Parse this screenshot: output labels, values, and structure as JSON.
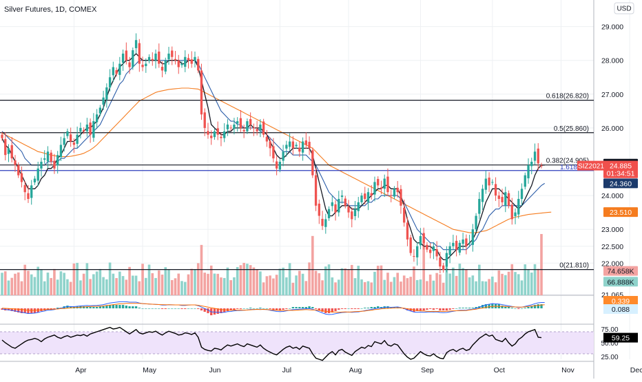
{
  "header": {
    "title": "Silver Futures, 1D, COMEX"
  },
  "currency_button": {
    "label": "USD"
  },
  "colors": {
    "up": "#26a69a",
    "down": "#ef5350",
    "vol_up": "#8fd3cb",
    "vol_down": "#f3a3a1",
    "ma_fast": "#131722",
    "ma_mid": "#2a5ca8",
    "ma_slow": "#f57c1f",
    "fib_line": "#131722",
    "blue_line": "#2c3dbd",
    "macd_line": "#2962ff",
    "signal_line": "#ff6d00",
    "rsi_line": "#000000",
    "rsi_band": "#efe3fb",
    "grid": "#eef0f3"
  },
  "chart_data": {
    "type": "candlestick",
    "title": "Silver Futures, 1D, COMEX",
    "price_axis": {
      "ticks": [
        "29.000",
        "28.000",
        "27.000",
        "26.000",
        "24.000",
        "23.000",
        "22.500",
        "22.000",
        "21.065"
      ],
      "range": [
        20.9,
        29.6
      ]
    },
    "time_axis": {
      "labels": [
        "Apr",
        "May",
        "Jun",
        "Jul",
        "Aug",
        "Sep",
        "Oct",
        "Nov",
        "Dec"
      ],
      "month_starts": [
        22,
        43,
        63,
        85,
        106,
        128,
        150,
        171,
        192
      ]
    },
    "fib_levels": [
      {
        "label": "0.618(26.820)",
        "price": 26.82
      },
      {
        "label": "0.5(25.860)",
        "price": 25.86
      },
      {
        "label": "0.382(24.905)",
        "price": 24.905
      },
      {
        "label": "0(21.810)",
        "price": 21.81
      }
    ],
    "blue_level": {
      "label": "1.618",
      "price": 24.74
    },
    "price_labels": [
      {
        "text": "24.945",
        "price": 24.945,
        "style": "dark"
      },
      {
        "text": "24.885",
        "price": 24.885,
        "style": "red"
      },
      {
        "text": "SIZ2021",
        "price": 24.885,
        "style": "red-tag"
      },
      {
        "text": "01:34:51",
        "price": 24.66,
        "style": "red"
      },
      {
        "text": "24.360",
        "price": 24.36,
        "style": "navy"
      },
      {
        "text": "23.510",
        "price": 23.51,
        "style": "orange"
      },
      {
        "text": "74.658K",
        "price": 21.77,
        "style": "salmon"
      },
      {
        "text": "66.888K",
        "price": 21.45,
        "style": "teal"
      }
    ],
    "closes": [
      25.7,
      25.2,
      25.4,
      25.1,
      24.9,
      24.6,
      24.4,
      24.1,
      23.9,
      24.3,
      24.5,
      24.8,
      25.0,
      25.1,
      25.3,
      25.0,
      24.8,
      25.2,
      25.5,
      25.7,
      25.9,
      25.6,
      25.5,
      25.8,
      26.0,
      25.9,
      26.1,
      25.8,
      26.2,
      26.4,
      26.6,
      26.9,
      27.2,
      27.5,
      27.8,
      27.6,
      27.9,
      28.2,
      28.0,
      27.8,
      28.3,
      28.6,
      27.9,
      27.8,
      27.9,
      28.1,
      28.0,
      28.2,
      27.9,
      27.7,
      28.0,
      28.2,
      28.1,
      28.0,
      27.8,
      27.9,
      28.1,
      28.0,
      27.9,
      28.1,
      27.7,
      26.4,
      26.0,
      25.8,
      25.7,
      25.9,
      25.8,
      25.7,
      25.9,
      26.1,
      26.0,
      26.1,
      26.2,
      26.0,
      25.9,
      26.2,
      26.1,
      26.0,
      25.9,
      26.1,
      25.8,
      25.6,
      25.4,
      25.1,
      24.8,
      25.0,
      25.3,
      25.5,
      25.6,
      25.4,
      25.5,
      25.3,
      25.6,
      25.5,
      25.4,
      24.6,
      23.7,
      23.4,
      23.1,
      23.3,
      23.6,
      23.8,
      23.5,
      23.9,
      24.0,
      23.7,
      23.5,
      23.3,
      23.6,
      23.8,
      24.0,
      23.9,
      24.1,
      24.0,
      24.4,
      24.3,
      24.2,
      24.5,
      24.1,
      24.0,
      24.2,
      24.1,
      23.7,
      23.2,
      22.7,
      22.3,
      22.2,
      22.5,
      22.8,
      22.6,
      22.4,
      22.3,
      22.5,
      22.2,
      21.9,
      21.8,
      22.3,
      22.5,
      22.6,
      22.4,
      22.6,
      22.7,
      22.5,
      22.6,
      23.0,
      23.4,
      23.9,
      24.2,
      24.5,
      24.3,
      24.4,
      24.0,
      23.9,
      23.8,
      24.1,
      23.7,
      23.3,
      23.5,
      23.9,
      24.2,
      24.6,
      24.9,
      25.0,
      25.3,
      24.95,
      24.885
    ],
    "ma_fast": [
      25.7,
      25.5,
      25.4,
      25.2,
      25.0,
      24.8,
      24.6,
      24.4,
      24.2,
      24.2,
      24.2,
      24.3,
      24.5,
      24.6,
      24.8,
      24.8,
      24.9,
      25.1,
      25.2,
      25.4,
      25.6,
      25.6,
      25.6,
      25.7,
      25.8,
      25.9,
      26.0,
      26.0,
      26.1,
      26.2,
      26.4,
      26.6,
      26.9,
      27.2,
      27.4,
      27.6,
      27.8,
      27.9,
      28.0,
      28.0,
      28.1,
      28.2,
      28.1,
      28.0,
      28.0,
      28.0,
      28.0,
      28.0,
      28.0,
      27.9,
      27.9,
      28.0,
      28.0,
      28.0,
      28.0,
      27.9,
      27.9,
      28.0,
      28.0,
      28.0,
      27.8,
      27.4,
      27.0,
      26.6,
      26.1,
      26.0,
      25.9,
      25.8,
      25.8,
      25.9,
      25.9,
      26.0,
      26.0,
      26.0,
      26.0,
      26.0,
      26.1,
      26.0,
      26.0,
      26.0,
      25.9,
      25.8,
      25.6,
      25.4,
      25.2,
      25.1,
      25.1,
      25.2,
      25.3,
      25.4,
      25.4,
      25.4,
      25.4,
      25.4,
      25.4,
      25.2,
      24.8,
      24.4,
      24.0,
      23.6,
      23.4,
      23.4,
      23.5,
      23.6,
      23.7,
      23.7,
      23.7,
      23.6,
      23.6,
      23.6,
      23.7,
      23.8,
      23.9,
      24.0,
      24.1,
      24.2,
      24.2,
      24.3,
      24.3,
      24.2,
      24.2,
      24.2,
      24.0,
      23.7,
      23.3,
      23.0,
      22.7,
      22.6,
      22.6,
      22.5,
      22.5,
      22.5,
      22.4,
      22.4,
      22.2,
      22.1,
      22.1,
      22.2,
      22.3,
      22.4,
      22.5,
      22.5,
      22.5,
      22.6,
      22.7,
      22.9,
      23.2,
      23.5,
      23.8,
      24.0,
      24.2,
      24.2,
      24.2,
      24.1,
      24.0,
      23.9,
      23.8,
      23.7,
      23.6,
      23.7,
      23.9,
      24.1,
      24.3,
      24.6,
      24.8,
      24.9,
      24.9
    ],
    "ma_mid": [
      25.9,
      25.8,
      25.7,
      25.6,
      25.5,
      25.4,
      25.3,
      25.1,
      25.0,
      24.9,
      24.9,
      24.9,
      24.9,
      24.9,
      25.0,
      25.0,
      25.0,
      25.0,
      25.1,
      25.1,
      25.2,
      25.3,
      25.4,
      25.4,
      25.5,
      25.6,
      25.7,
      25.8,
      25.9,
      26.0,
      26.1,
      26.3,
      26.5,
      26.7,
      26.9,
      27.1,
      27.3,
      27.4,
      27.6,
      27.7,
      27.8,
      27.9,
      28.0,
      28.0,
      28.0,
      28.0,
      28.0,
      28.0,
      28.0,
      28.0,
      28.0,
      28.0,
      28.0,
      28.0,
      28.0,
      28.0,
      28.0,
      28.0,
      28.0,
      28.0,
      27.9,
      27.7,
      27.5,
      27.3,
      27.1,
      26.9,
      26.7,
      26.5,
      26.4,
      26.3,
      26.2,
      26.2,
      26.1,
      26.1,
      26.0,
      26.0,
      26.0,
      26.0,
      26.0,
      25.9,
      25.9,
      25.8,
      25.7,
      25.6,
      25.5,
      25.4,
      25.3,
      25.3,
      25.3,
      25.2,
      25.2,
      25.2,
      25.2,
      25.2,
      25.1,
      25.0,
      24.9,
      24.7,
      24.5,
      24.3,
      24.1,
      24.0,
      23.9,
      23.8,
      23.8,
      23.8,
      23.7,
      23.7,
      23.7,
      23.7,
      23.7,
      23.7,
      23.8,
      23.8,
      23.9,
      23.9,
      24.0,
      24.0,
      24.0,
      24.0,
      24.0,
      24.0,
      23.9,
      23.8,
      23.6,
      23.4,
      23.2,
      23.0,
      22.9,
      22.8,
      22.7,
      22.6,
      22.6,
      22.5,
      22.5,
      22.4,
      22.4,
      22.4,
      22.4,
      22.4,
      22.4,
      22.4,
      22.4,
      22.5,
      22.6,
      22.7,
      22.9,
      23.0,
      23.2,
      23.4,
      23.5,
      23.6,
      23.6,
      23.7,
      23.7,
      23.7,
      23.7,
      23.7,
      23.7,
      23.7,
      23.8,
      23.9,
      24.0,
      24.1,
      24.2,
      24.3,
      24.36
    ],
    "ma_slow": [
      25.85,
      25.8,
      25.75,
      25.7,
      25.65,
      25.6,
      25.55,
      25.5,
      25.45,
      25.4,
      25.35,
      25.3,
      25.28,
      25.25,
      25.22,
      25.2,
      25.18,
      25.16,
      25.15,
      25.15,
      25.15,
      25.16,
      25.18,
      25.2,
      25.22,
      25.25,
      25.3,
      25.35,
      25.42,
      25.5,
      25.6,
      25.7,
      25.8,
      25.9,
      26.0,
      26.1,
      26.2,
      26.3,
      26.4,
      26.5,
      26.6,
      26.7,
      26.8,
      26.85,
      26.9,
      26.95,
      27.0,
      27.05,
      27.08,
      27.1,
      27.12,
      27.14,
      27.15,
      27.16,
      27.17,
      27.18,
      27.18,
      27.18,
      27.17,
      27.16,
      27.15,
      27.1,
      27.05,
      27.0,
      26.95,
      26.9,
      26.85,
      26.8,
      26.75,
      26.7,
      26.65,
      26.6,
      26.55,
      26.5,
      26.45,
      26.4,
      26.35,
      26.3,
      26.25,
      26.2,
      26.15,
      26.1,
      26.05,
      26.0,
      25.95,
      25.9,
      25.85,
      25.8,
      25.75,
      25.7,
      25.65,
      25.6,
      25.55,
      25.5,
      25.45,
      25.4,
      25.3,
      25.2,
      25.1,
      25.0,
      24.9,
      24.85,
      24.8,
      24.75,
      24.7,
      24.65,
      24.6,
      24.55,
      24.5,
      24.45,
      24.4,
      24.35,
      24.3,
      24.25,
      24.2,
      24.15,
      24.1,
      24.05,
      24.0,
      23.95,
      23.9,
      23.85,
      23.8,
      23.75,
      23.7,
      23.65,
      23.6,
      23.55,
      23.5,
      23.45,
      23.4,
      23.35,
      23.3,
      23.25,
      23.2,
      23.15,
      23.1,
      23.05,
      23.0,
      22.98,
      22.96,
      22.94,
      22.92,
      22.9,
      22.9,
      22.9,
      22.92,
      22.94,
      22.96,
      23.0,
      23.05,
      23.1,
      23.15,
      23.2,
      23.25,
      23.3,
      23.33,
      23.36,
      23.38,
      23.4,
      23.42,
      23.44,
      23.45,
      23.46,
      23.47,
      23.48,
      23.49,
      23.5,
      23.51
    ],
    "volume_axis_label": "K",
    "macd_labels": [
      "0.339",
      "0.088"
    ],
    "rsi": {
      "ticks": [
        "75.00",
        "50.00",
        "25.00"
      ],
      "last_label": "59.25",
      "values": [
        55,
        50,
        46,
        42,
        40,
        44,
        48,
        52,
        55,
        56,
        58,
        56,
        52,
        57,
        60,
        62,
        64,
        60,
        58,
        61,
        63,
        60,
        62,
        64,
        63,
        65,
        62,
        66,
        68,
        70,
        72,
        74,
        76,
        78,
        75,
        76,
        78,
        74,
        70,
        66,
        70,
        74,
        68,
        66,
        68,
        70,
        69,
        71,
        67,
        64,
        68,
        71,
        69,
        67,
        64,
        65,
        68,
        67,
        65,
        68,
        60,
        42,
        38,
        36,
        35,
        40,
        39,
        37,
        42,
        46,
        44,
        46,
        48,
        45,
        43,
        48,
        46,
        44,
        42,
        46,
        40,
        36,
        33,
        30,
        28,
        33,
        38,
        42,
        44,
        40,
        42,
        38,
        44,
        42,
        40,
        30,
        22,
        20,
        18,
        24,
        30,
        34,
        28,
        36,
        38,
        33,
        30,
        27,
        34,
        38,
        42,
        40,
        45,
        43,
        52,
        50,
        48,
        54,
        46,
        44,
        48,
        46,
        38,
        30,
        24,
        20,
        22,
        28,
        34,
        30,
        27,
        26,
        30,
        25,
        22,
        21,
        32,
        36,
        38,
        34,
        38,
        40,
        36,
        38,
        46,
        52,
        58,
        62,
        66,
        62,
        64,
        56,
        54,
        52,
        58,
        50,
        44,
        48,
        56,
        60,
        66,
        70,
        72,
        74,
        60,
        59.25
      ]
    }
  }
}
